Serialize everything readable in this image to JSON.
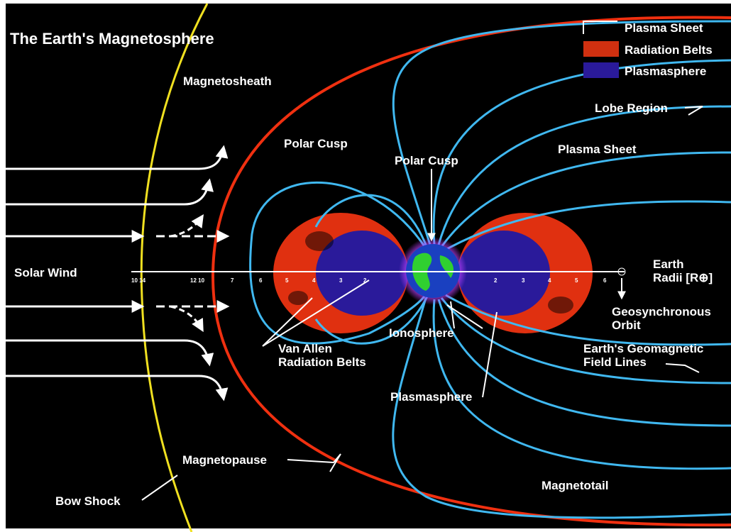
{
  "title": "The Earth's Magnetosphere",
  "legend": [
    {
      "label": "Plasma Sheet"
    },
    {
      "label": "Radiation Belts"
    },
    {
      "label": "Plasmasphere"
    }
  ],
  "labels": {
    "magnetosheath": [
      "Magnetosheath"
    ],
    "polar_cusp_left": [
      "Polar Cusp"
    ],
    "polar_cusp_top": [
      "Polar Cusp"
    ],
    "lobe_region": [
      "Lobe Region"
    ],
    "plasma_sheet": [
      "Plasma Sheet"
    ],
    "solar_wind": [
      "Solar Wind"
    ],
    "earth_radii": [
      "Earth",
      "Radii [R⊕]"
    ],
    "geosynchronous_orbit": [
      "Geosynchronous",
      "Orbit"
    ],
    "van_allen": [
      "Van Allen",
      "Radiation Belts"
    ],
    "ionosphere": [
      "Ionosphere"
    ],
    "field_lines": [
      "Earth's Geomagnetic",
      "Field Lines"
    ],
    "plasmasphere": [
      "Plasmasphere"
    ],
    "magnetopause": [
      "Magnetopause"
    ],
    "magnetotail": [
      "Magnetotail"
    ],
    "bow_shock": [
      "Bow Shock"
    ]
  },
  "axis": {
    "left": [
      "10 14",
      "12 10",
      "7",
      "6",
      "5",
      "4",
      "3",
      "2"
    ],
    "right": [
      "2",
      "3",
      "4",
      "5",
      "6"
    ]
  }
}
